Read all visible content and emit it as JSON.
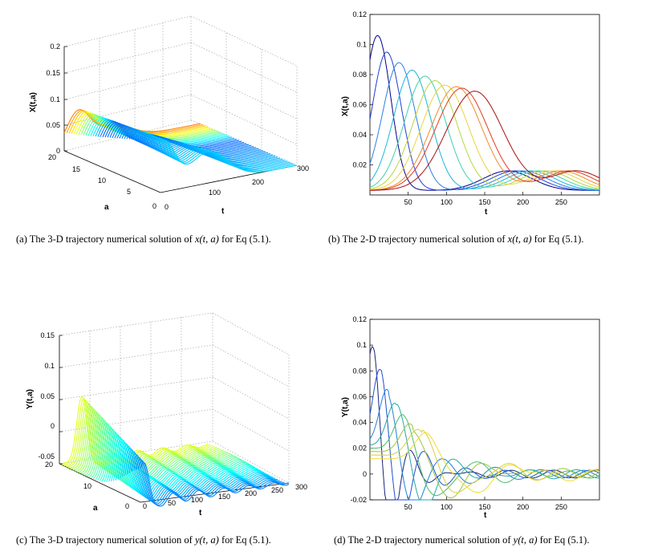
{
  "figure": {
    "panel_a": {
      "zlabel": "X(t,a)",
      "xlabel": "t",
      "ylabel": "a",
      "z_ticks": [
        "0",
        "0.05",
        "0.1",
        "0.15",
        "0.2"
      ],
      "t_ticks": [
        "0",
        "100",
        "200",
        "300"
      ],
      "a_ticks": [
        "0",
        "5",
        "10",
        "15",
        "20"
      ],
      "caption_prefix": "(a) The 3-D trajectory numerical solution of ",
      "caption_math": "x(t, a)",
      "caption_suffix": " for Eq (5.1)."
    },
    "panel_b": {
      "ylabel": "X(t,a)",
      "xlabel": "t",
      "caption_prefix": "(b) The 2-D trajectory numerical solution of ",
      "caption_math": "x(t, a)",
      "caption_suffix": " for Eq (5.1)."
    },
    "panel_c": {
      "zlabel": "Y(t,a)",
      "xlabel": "t",
      "ylabel": "a",
      "z_ticks": [
        "-0.05",
        "0",
        "0.05",
        "0.1",
        "0.15"
      ],
      "t_ticks": [
        "0",
        "50",
        "100",
        "150",
        "200",
        "250",
        "300"
      ],
      "a_ticks": [
        "0",
        "10",
        "20"
      ],
      "caption_prefix": "(c) The 3-D trajectory numerical solution of ",
      "caption_math": "y(t, a)",
      "caption_suffix": " for Eq (5.1)."
    },
    "panel_d": {
      "ylabel": "Y(t,a)",
      "xlabel": "t",
      "caption_prefix": "(d) The 2-D trajectory numerical solution of ",
      "caption_math": "y(t, a)",
      "caption_suffix": " for Eq (5.1)."
    }
  },
  "chart_data": [
    {
      "type": "line",
      "panel": "b",
      "xlim": [
        0,
        300
      ],
      "ylim": [
        0,
        0.12
      ],
      "x_ticks": [
        50,
        100,
        150,
        200,
        250
      ],
      "y_ticks": [
        0.02,
        0.04,
        0.06,
        0.08,
        0.1,
        0.12
      ],
      "series": [
        {
          "color": "#00008f",
          "peak_t": 10,
          "peak": 0.103
        },
        {
          "color": "#1f3fd6",
          "peak_t": 22,
          "peak": 0.092
        },
        {
          "color": "#2a7fe6",
          "peak_t": 38,
          "peak": 0.085
        },
        {
          "color": "#18b8d8",
          "peak_t": 55,
          "peak": 0.08
        },
        {
          "color": "#3fd0b0",
          "peak_t": 72,
          "peak": 0.076
        },
        {
          "color": "#b7d640",
          "peak_t": 85,
          "peak": 0.073
        },
        {
          "color": "#e8d43c",
          "peak_t": 98,
          "peak": 0.07
        },
        {
          "color": "#f08a28",
          "peak_t": 113,
          "peak": 0.069
        },
        {
          "color": "#e23a1c",
          "peak_t": 120,
          "peak": 0.068
        },
        {
          "color": "#a80f0f",
          "peak_t": 137,
          "peak": 0.066
        }
      ]
    },
    {
      "type": "line",
      "panel": "d",
      "xlim": [
        0,
        300
      ],
      "ylim": [
        -0.02,
        0.12
      ],
      "x_ticks": [
        50,
        100,
        150,
        200,
        250
      ],
      "y_ticks": [
        -0.02,
        0,
        0.02,
        0.04,
        0.06,
        0.08,
        0.1,
        0.12
      ],
      "series": [
        {
          "color": "#1a237e",
          "peak_t": 5,
          "peak": 0.097
        },
        {
          "color": "#1e4fd6",
          "peak_t": 15,
          "peak": 0.079
        },
        {
          "color": "#1f80d8",
          "peak_t": 25,
          "peak": 0.063
        },
        {
          "color": "#24a8a8",
          "peak_t": 36,
          "peak": 0.052
        },
        {
          "color": "#4dbb6a",
          "peak_t": 47,
          "peak": 0.043
        },
        {
          "color": "#9ac43f",
          "peak_t": 57,
          "peak": 0.036
        },
        {
          "color": "#d9cf38",
          "peak_t": 68,
          "peak": 0.032
        },
        {
          "color": "#f2dc2a",
          "peak_t": 78,
          "peak": 0.03
        }
      ]
    }
  ]
}
